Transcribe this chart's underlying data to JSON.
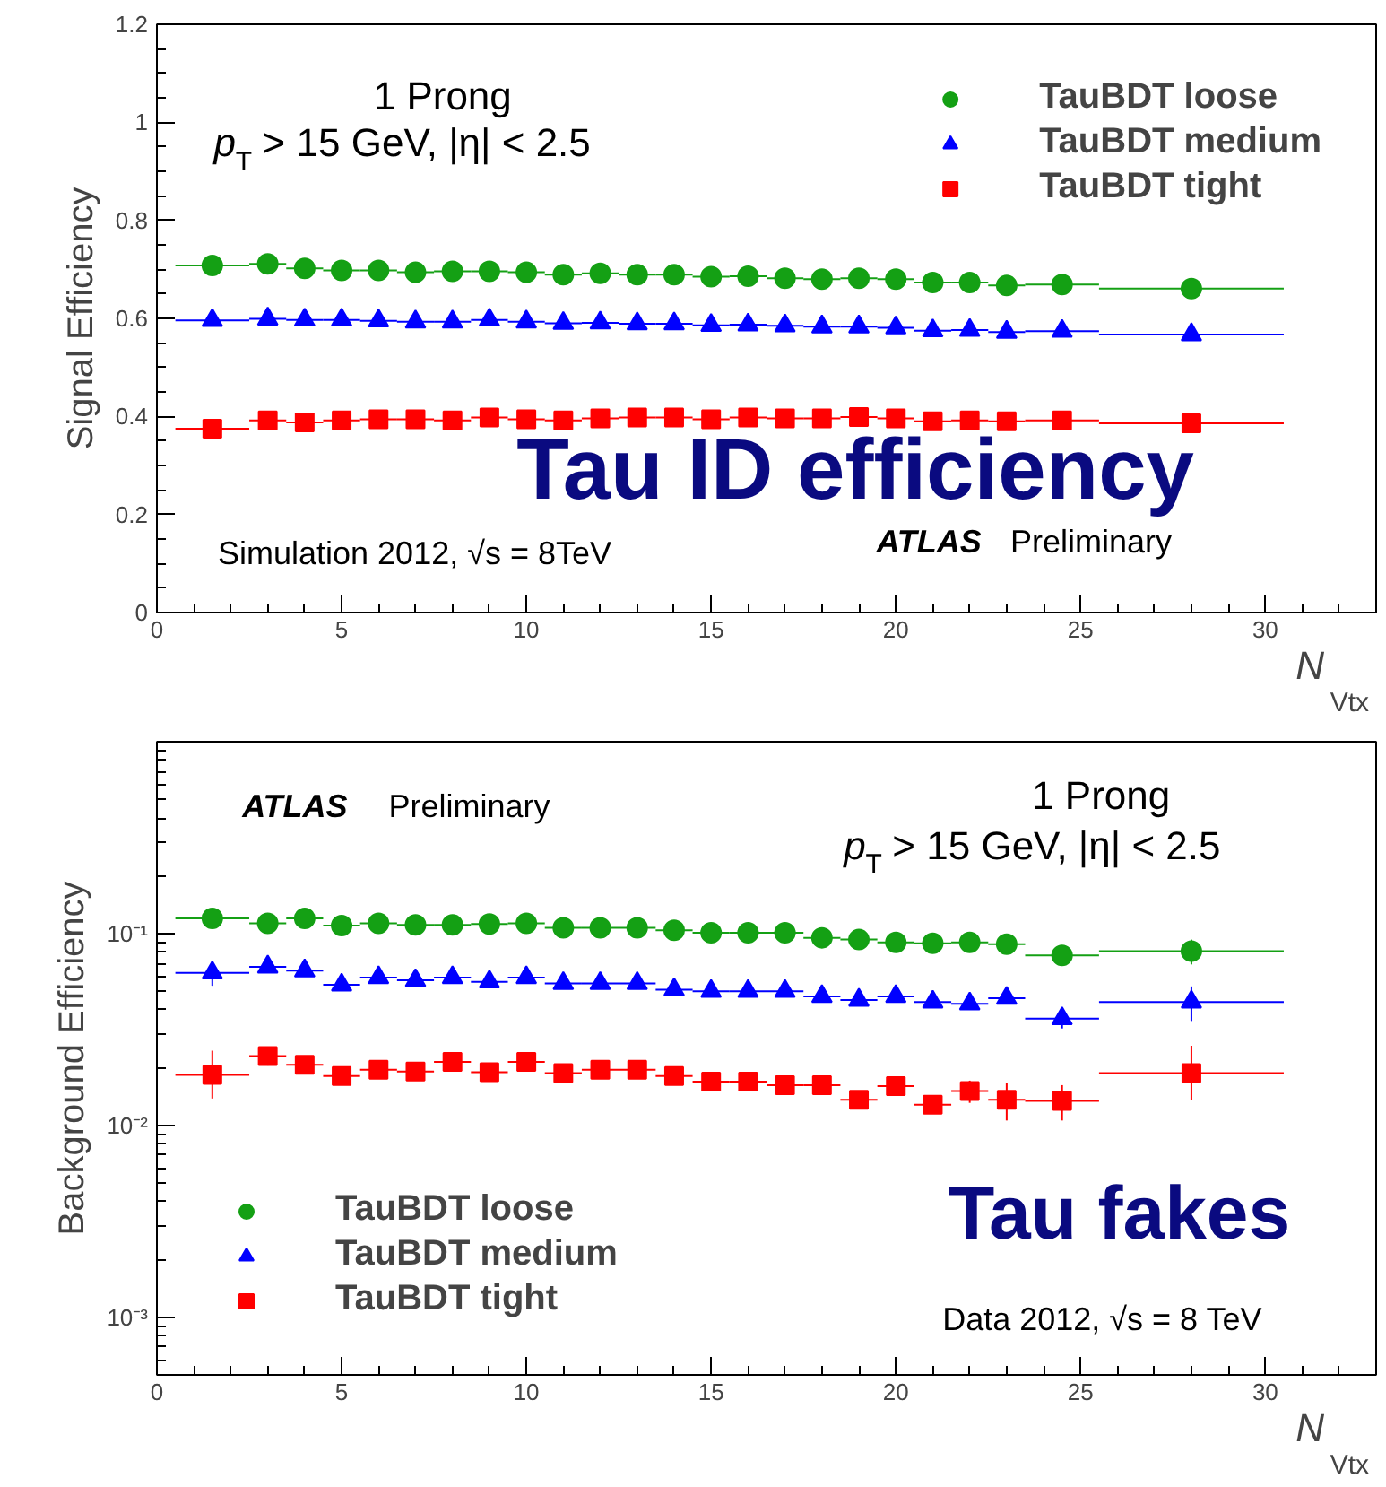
{
  "chart_data": [
    {
      "type": "scatter",
      "ylabel": "Signal Efficiency",
      "xlabel": "N$_{Vtx}$",
      "x": [
        1.5,
        3,
        4,
        5,
        6,
        7,
        8,
        9,
        10,
        11,
        12,
        13,
        14,
        15,
        16,
        17,
        18,
        19,
        20,
        21,
        22,
        23,
        24.5,
        28
      ],
      "xlim": [
        0,
        33
      ],
      "xticks": [
        0,
        5,
        10,
        15,
        20,
        25,
        30
      ],
      "ylim": [
        0,
        1.2
      ],
      "yticks": [
        0,
        0.2,
        0.4,
        0.6,
        0.8,
        1,
        1.2
      ],
      "grid": false,
      "legend": "top right",
      "series": [
        {
          "name": "TauBDT loose",
          "color": "#14a014",
          "marker": "circle",
          "values": [
            0.708,
            0.711,
            0.702,
            0.698,
            0.698,
            0.694,
            0.696,
            0.696,
            0.694,
            0.689,
            0.692,
            0.689,
            0.689,
            0.685,
            0.686,
            0.682,
            0.68,
            0.682,
            0.68,
            0.673,
            0.673,
            0.667,
            0.669,
            0.661
          ],
          "xerrors": [
            1,
            0.5,
            0.5,
            0.5,
            0.5,
            0.5,
            0.5,
            0.5,
            0.5,
            0.5,
            0.5,
            0.5,
            0.5,
            0.5,
            0.5,
            0.5,
            0.5,
            0.5,
            0.5,
            0.5,
            0.5,
            0.5,
            1,
            2.5
          ]
        },
        {
          "name": "TauBDT medium",
          "color": "#0000ff",
          "marker": "triangle",
          "values": [
            0.596,
            0.599,
            0.597,
            0.597,
            0.595,
            0.593,
            0.593,
            0.597,
            0.593,
            0.59,
            0.591,
            0.589,
            0.589,
            0.586,
            0.587,
            0.585,
            0.583,
            0.583,
            0.581,
            0.575,
            0.576,
            0.572,
            0.574,
            0.567
          ],
          "xerrors": [
            1,
            0.5,
            0.5,
            0.5,
            0.5,
            0.5,
            0.5,
            0.5,
            0.5,
            0.5,
            0.5,
            0.5,
            0.5,
            0.5,
            0.5,
            0.5,
            0.5,
            0.5,
            0.5,
            0.5,
            0.5,
            0.5,
            1,
            2.5
          ]
        },
        {
          "name": "TauBDT tight",
          "color": "#ff0000",
          "marker": "square",
          "values": [
            0.375,
            0.392,
            0.388,
            0.392,
            0.394,
            0.394,
            0.392,
            0.398,
            0.394,
            0.392,
            0.396,
            0.398,
            0.398,
            0.394,
            0.398,
            0.396,
            0.396,
            0.399,
            0.396,
            0.39,
            0.392,
            0.39,
            0.392,
            0.386
          ],
          "xerrors": [
            1,
            0.5,
            0.5,
            0.5,
            0.5,
            0.5,
            0.5,
            0.5,
            0.5,
            0.5,
            0.5,
            0.5,
            0.5,
            0.5,
            0.5,
            0.5,
            0.5,
            0.5,
            0.5,
            0.5,
            0.5,
            0.5,
            1,
            2.5
          ]
        }
      ],
      "annotations": [
        "1 Prong",
        "p$_{T}$ > 15 GeV, |η| < 2.5",
        "Tau ID efficiency",
        "Simulation 2012, √s = 8TeV",
        "ATLAS",
        "Preliminary"
      ]
    },
    {
      "type": "scatter",
      "ylabel": "Background Efficiency",
      "xlabel": "N$_{Vtx}$",
      "x": [
        1.5,
        3,
        4,
        5,
        6,
        7,
        8,
        9,
        10,
        11,
        12,
        13,
        14,
        15,
        16,
        17,
        18,
        19,
        20,
        21,
        22,
        23,
        24.5,
        28
      ],
      "xlim": [
        0,
        33
      ],
      "xticks": [
        0,
        5,
        10,
        15,
        20,
        25,
        30
      ],
      "ylim": [
        0.0005,
        1
      ],
      "yticks": [
        {
          "value": 0.001,
          "label": "10⁻³"
        },
        {
          "value": 0.01,
          "label": "10⁻²"
        },
        {
          "value": 0.1,
          "label": "10⁻¹"
        }
      ],
      "log": "y",
      "grid": false,
      "legend": "bottom left",
      "series": [
        {
          "name": "TauBDT loose",
          "color": "#14a014",
          "marker": "circle",
          "values": [
            0.12,
            0.113,
            0.12,
            0.11,
            0.113,
            0.111,
            0.111,
            0.112,
            0.113,
            0.107,
            0.107,
            0.107,
            0.104,
            0.101,
            0.101,
            0.101,
            0.095,
            0.093,
            0.09,
            0.089,
            0.09,
            0.088,
            0.077,
            0.081
          ],
          "errors": [
            0.01,
            null,
            null,
            null,
            null,
            null,
            null,
            null,
            null,
            null,
            null,
            null,
            null,
            null,
            null,
            null,
            null,
            null,
            null,
            null,
            null,
            null,
            0.004,
            0.012
          ],
          "xerrors": [
            1,
            0.5,
            0.5,
            0.5,
            0.5,
            0.5,
            0.5,
            0.5,
            0.5,
            0.5,
            0.5,
            0.5,
            0.5,
            0.5,
            0.5,
            0.5,
            0.5,
            0.5,
            0.5,
            0.5,
            0.5,
            0.5,
            1,
            2.5
          ]
        },
        {
          "name": "TauBDT medium",
          "color": "#0000ff",
          "marker": "triangle",
          "values": [
            0.0624,
            0.067,
            0.064,
            0.054,
            0.059,
            0.057,
            0.059,
            0.056,
            0.059,
            0.055,
            0.055,
            0.055,
            0.051,
            0.05,
            0.05,
            0.05,
            0.047,
            0.045,
            0.047,
            0.044,
            0.043,
            0.046,
            0.036,
            0.044
          ],
          "errors": [
            0.009,
            null,
            null,
            null,
            null,
            null,
            null,
            null,
            null,
            null,
            null,
            null,
            null,
            null,
            null,
            null,
            null,
            null,
            null,
            null,
            null,
            0.003,
            0.004,
            0.009
          ],
          "xerrors": [
            1,
            0.5,
            0.5,
            0.5,
            0.5,
            0.5,
            0.5,
            0.5,
            0.5,
            0.5,
            0.5,
            0.5,
            0.5,
            0.5,
            0.5,
            0.5,
            0.5,
            0.5,
            0.5,
            0.5,
            0.5,
            0.5,
            1,
            2.5
          ]
        },
        {
          "name": "TauBDT tight",
          "color": "#ff0000",
          "marker": "square",
          "values": [
            0.0183,
            0.023,
            0.0207,
            0.0181,
            0.0195,
            0.0191,
            0.0214,
            0.0189,
            0.0214,
            0.0187,
            0.0195,
            0.0195,
            0.0181,
            0.0169,
            0.0169,
            0.0162,
            0.0162,
            0.0136,
            0.016,
            0.0128,
            0.0151,
            0.0136,
            0.0134,
            0.0187
          ],
          "errors": [
            [
              0.0138,
              0.0245
            ],
            0.0025,
            null,
            null,
            null,
            null,
            null,
            null,
            null,
            null,
            null,
            null,
            null,
            null,
            null,
            null,
            null,
            null,
            null,
            0.0012,
            0.002,
            0.003,
            0.0028,
            [
              0.0135,
              0.026
            ]
          ],
          "xerrors": [
            1,
            0.5,
            0.5,
            0.5,
            0.5,
            0.5,
            0.5,
            0.5,
            0.5,
            0.5,
            0.5,
            0.5,
            0.5,
            0.5,
            0.5,
            0.5,
            0.5,
            0.5,
            0.5,
            0.5,
            0.5,
            0.5,
            1,
            2.5
          ]
        }
      ],
      "annotations": [
        "ATLAS",
        "Preliminary",
        "1 Prong",
        "p$_{T}$ > 15 GeV, |η| < 2.5",
        "Tau fakes",
        "Data 2012, √s = 8 TeV"
      ]
    }
  ]
}
